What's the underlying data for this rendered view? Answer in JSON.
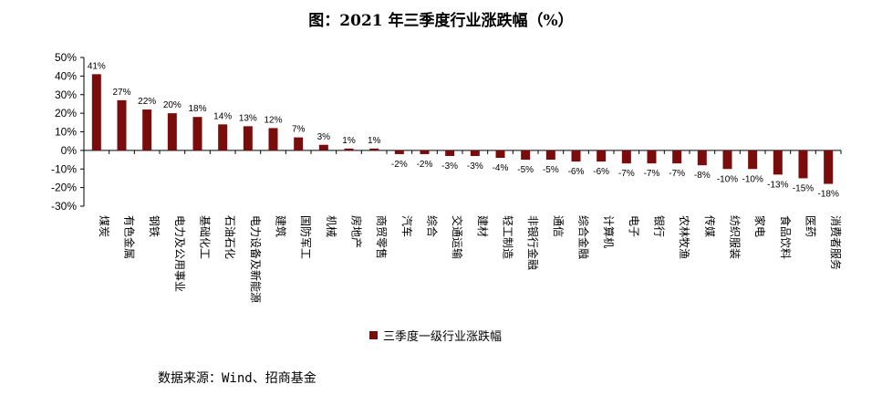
{
  "title": "图：2021 年三季度行业涨跌幅（%）",
  "source": "数据来源：Wind、招商基金",
  "colors": {
    "bar": "#7b0c0c",
    "axis": "#000000"
  },
  "chart_data": {
    "type": "bar",
    "title": "图：2021 年三季度行业涨跌幅（%）",
    "ylim": [
      -30,
      50
    ],
    "yticks": [
      "50%",
      "40%",
      "30%",
      "20%",
      "10%",
      "0%",
      "-10%",
      "-20%",
      "-30%"
    ],
    "ytick_values": [
      50,
      40,
      30,
      20,
      10,
      0,
      -10,
      -20,
      -30
    ],
    "grid": false,
    "legend": "bottom",
    "categories": [
      "煤炭",
      "有色金属",
      "钢铁",
      "电力及公用事业",
      "基础化工",
      "石油石化",
      "电力设备及新能源",
      "建筑",
      "国防军工",
      "机械",
      "房地产",
      "商贸零售",
      "汽车",
      "综合",
      "交通运输",
      "建材",
      "轻工制造",
      "非银行金融",
      "通信",
      "综合金融",
      "计算机",
      "电子",
      "银行",
      "农林牧渔",
      "传媒",
      "纺织服装",
      "家电",
      "食品饮料",
      "医药",
      "消费者服务"
    ],
    "series": [
      {
        "name": "三季度一级行业涨跌幅",
        "values": [
          41,
          27,
          22,
          20,
          18,
          14,
          13,
          12,
          7,
          3,
          1,
          1,
          -2,
          -2,
          -3,
          -3,
          -4,
          -5,
          -5,
          -6,
          -6,
          -7,
          -7,
          -7,
          -8,
          -10,
          -10,
          -13,
          -15,
          -18
        ],
        "labels": [
          "41%",
          "27%",
          "22%",
          "20%",
          "18%",
          "14%",
          "13%",
          "12%",
          "7%",
          "3%",
          "1%",
          "1%",
          "-2%",
          "-2%",
          "-3%",
          "-3%",
          "-4%",
          "-5%",
          "-5%",
          "-6%",
          "-6%",
          "-7%",
          "-7%",
          "-7%",
          "-8%",
          "-10%",
          "-10%",
          "-13%",
          "-15%",
          "-18%"
        ]
      }
    ]
  }
}
